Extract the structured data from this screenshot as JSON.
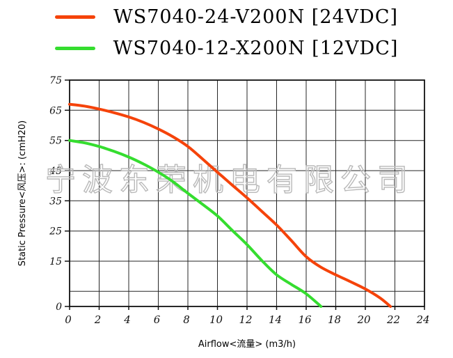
{
  "legend": {
    "items": [
      {
        "label": "WS7040-24-V200N [24VDC]",
        "color": "#f5430a"
      },
      {
        "label": "WS7040-12-X200N [12VDC]",
        "color": "#35dd2f"
      }
    ]
  },
  "watermark": "宁波东荣机电有限公司",
  "chart_data": {
    "type": "line",
    "title": "",
    "xlabel": "Airflow<流量>  (m3/h)",
    "ylabel": "Static Pressure<风压>: (cmH20)",
    "xlim": [
      0,
      24
    ],
    "ylim": [
      0,
      75
    ],
    "grid": true,
    "legend_position": "top",
    "xticks": [
      0,
      2,
      4,
      6,
      8,
      10,
      12,
      14,
      16,
      18,
      20,
      22,
      24
    ],
    "yticks": [
      75,
      65,
      55,
      45,
      35,
      25,
      15,
      0
    ],
    "ygrid": [
      5,
      15,
      25,
      35,
      45,
      55,
      65,
      75
    ],
    "series": [
      {
        "name": "WS7040-24-V200N [24VDC]",
        "color": "#f5430a",
        "points": [
          [
            0,
            67
          ],
          [
            1,
            66.4
          ],
          [
            2,
            65.4
          ],
          [
            3,
            64.2
          ],
          [
            4,
            62.8
          ],
          [
            5,
            61.0
          ],
          [
            6,
            58.8
          ],
          [
            7,
            56.2
          ],
          [
            8,
            53.0
          ],
          [
            9,
            48.8
          ],
          [
            10,
            44.5
          ],
          [
            11,
            40.2
          ],
          [
            12,
            36.0
          ],
          [
            13,
            31.5
          ],
          [
            14,
            27.0
          ],
          [
            15,
            21.8
          ],
          [
            16,
            16.5
          ],
          [
            17,
            13.0
          ],
          [
            18,
            10.5
          ],
          [
            19,
            8.2
          ],
          [
            20,
            5.8
          ],
          [
            21,
            2.8
          ],
          [
            21.7,
            0
          ]
        ]
      },
      {
        "name": "WS7040-12-X200N [12VDC]",
        "color": "#35dd2f",
        "points": [
          [
            0,
            55
          ],
          [
            1,
            54.2
          ],
          [
            2,
            53.0
          ],
          [
            3,
            51.4
          ],
          [
            4,
            49.5
          ],
          [
            5,
            47.2
          ],
          [
            6,
            44.5
          ],
          [
            7,
            41.3
          ],
          [
            8,
            37.5
          ],
          [
            9,
            33.8
          ],
          [
            10,
            30.0
          ],
          [
            11,
            25.2
          ],
          [
            12,
            20.5
          ],
          [
            13,
            15.2
          ],
          [
            14,
            10.5
          ],
          [
            15,
            7.3
          ],
          [
            16,
            4.2
          ],
          [
            17,
            0
          ]
        ]
      }
    ]
  }
}
